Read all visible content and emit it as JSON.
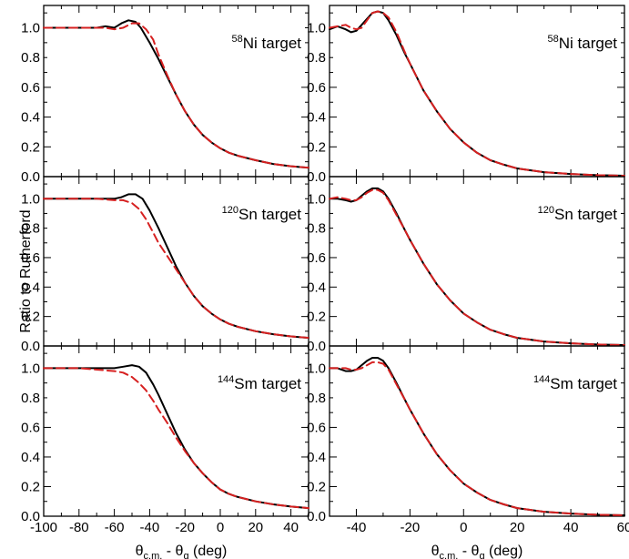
{
  "chart_data": {
    "type": "line",
    "ylabel": "Ratio to Rutherford",
    "xlabel_left": {
      "symbol": "θ",
      "sub1": "c.m.",
      "mid": " - θ",
      "sub2": "g",
      "unit": " (deg)"
    },
    "xlabel_right": {
      "symbol": "θ",
      "sub1": "c.m.",
      "mid": " - θ",
      "sub2": "g",
      "unit": " (deg)"
    },
    "line_styles": {
      "solid_color": "#000000",
      "dashed_color": "#d62020"
    },
    "columns": [
      {
        "xlim": [
          -100,
          50
        ],
        "xticks": [
          -100,
          -80,
          -60,
          -40,
          -20,
          0,
          20,
          40
        ],
        "xtick_labels": [
          "-100",
          "-80",
          "-60",
          "-40",
          "-20",
          "0",
          "20",
          "40"
        ]
      },
      {
        "xlim": [
          -50,
          60
        ],
        "xticks": [
          -40,
          -20,
          0,
          20,
          40,
          60
        ],
        "xtick_labels": [
          "-40",
          "-20",
          "0",
          "20",
          "40",
          "60"
        ]
      }
    ],
    "ylim": [
      0,
      1.15
    ],
    "yticks": [
      0,
      0.2,
      0.4,
      0.6,
      0.8,
      1.0
    ],
    "ytick_labels": [
      "0.0",
      "0.2",
      "0.4",
      "0.6",
      "0.8",
      "1.0"
    ],
    "panels": [
      {
        "col": 0,
        "row": 0,
        "label_sup": "58",
        "label": "Ni target",
        "series": [
          {
            "style": "solid",
            "x": [
              -100,
              -80,
              -70,
              -65,
              -60,
              -56,
              -52,
              -48,
              -45,
              -40,
              -35,
              -30,
              -25,
              -20,
              -15,
              -10,
              -5,
              0,
              5,
              10,
              20,
              30,
              40,
              50
            ],
            "y": [
              1.0,
              1.0,
              1.0,
              1.01,
              1.0,
              1.03,
              1.05,
              1.04,
              1.0,
              0.9,
              0.79,
              0.67,
              0.55,
              0.44,
              0.35,
              0.28,
              0.23,
              0.19,
              0.16,
              0.14,
              0.11,
              0.085,
              0.07,
              0.06
            ]
          },
          {
            "style": "dashed",
            "x": [
              -100,
              -80,
              -70,
              -65,
              -60,
              -55,
              -50,
              -46,
              -42,
              -38,
              -35,
              -30,
              -25,
              -20,
              -15,
              -10,
              -5,
              0,
              5,
              10,
              20,
              30,
              40,
              50
            ],
            "y": [
              1.0,
              1.0,
              1.0,
              1.0,
              0.99,
              1.0,
              1.03,
              1.03,
              0.99,
              0.92,
              0.82,
              0.68,
              0.55,
              0.44,
              0.35,
              0.28,
              0.23,
              0.19,
              0.16,
              0.14,
              0.11,
              0.085,
              0.07,
              0.06
            ]
          }
        ]
      },
      {
        "col": 1,
        "row": 0,
        "label_sup": "58",
        "label": "Ni target",
        "series": [
          {
            "style": "solid",
            "x": [
              -50,
              -47,
              -44,
              -42,
              -40,
              -38,
              -36,
              -34,
              -32,
              -30,
              -28,
              -25,
              -22,
              -20,
              -15,
              -10,
              -5,
              0,
              5,
              10,
              15,
              20,
              30,
              40,
              50,
              60
            ],
            "y": [
              0.99,
              1.01,
              0.99,
              0.97,
              0.98,
              1.02,
              1.06,
              1.1,
              1.11,
              1.1,
              1.05,
              0.95,
              0.83,
              0.76,
              0.58,
              0.44,
              0.32,
              0.23,
              0.16,
              0.11,
              0.08,
              0.055,
              0.03,
              0.018,
              0.01,
              0.006
            ]
          },
          {
            "style": "dashed",
            "x": [
              -50,
              -47,
              -44,
              -42,
              -40,
              -38,
              -36,
              -34,
              -32,
              -30,
              -28,
              -25,
              -22,
              -20,
              -15,
              -10,
              -5,
              0,
              5,
              10,
              15,
              20,
              30,
              40,
              50,
              60
            ],
            "y": [
              1.0,
              1.01,
              1.02,
              1.0,
              0.99,
              1.0,
              1.05,
              1.1,
              1.11,
              1.1,
              1.07,
              0.97,
              0.84,
              0.76,
              0.58,
              0.44,
              0.32,
              0.23,
              0.16,
              0.11,
              0.08,
              0.055,
              0.03,
              0.018,
              0.01,
              0.006
            ]
          }
        ]
      },
      {
        "col": 0,
        "row": 1,
        "label_sup": "120",
        "label": "Sn target",
        "series": [
          {
            "style": "solid",
            "x": [
              -100,
              -80,
              -70,
              -60,
              -56,
              -52,
              -48,
              -44,
              -40,
              -35,
              -30,
              -25,
              -20,
              -15,
              -10,
              -5,
              0,
              5,
              10,
              20,
              30,
              40,
              50
            ],
            "y": [
              1.0,
              1.0,
              1.0,
              1.0,
              1.01,
              1.03,
              1.03,
              1.0,
              0.92,
              0.8,
              0.67,
              0.54,
              0.43,
              0.34,
              0.27,
              0.22,
              0.18,
              0.15,
              0.13,
              0.1,
              0.08,
              0.065,
              0.055
            ]
          },
          {
            "style": "dashed",
            "x": [
              -100,
              -80,
              -70,
              -60,
              -55,
              -50,
              -46,
              -42,
              -38,
              -35,
              -30,
              -25,
              -20,
              -15,
              -10,
              -5,
              0,
              5,
              10,
              20,
              30,
              40,
              50
            ],
            "y": [
              1.0,
              1.0,
              1.0,
              0.99,
              0.99,
              0.97,
              0.93,
              0.86,
              0.77,
              0.7,
              0.61,
              0.52,
              0.43,
              0.34,
              0.27,
              0.22,
              0.18,
              0.15,
              0.13,
              0.1,
              0.08,
              0.065,
              0.055
            ]
          }
        ]
      },
      {
        "col": 1,
        "row": 1,
        "label_sup": "120",
        "label": "Sn target",
        "series": [
          {
            "style": "solid",
            "x": [
              -50,
              -47,
              -44,
              -42,
              -40,
              -38,
              -36,
              -34,
              -32,
              -30,
              -28,
              -25,
              -22,
              -20,
              -15,
              -10,
              -5,
              0,
              5,
              10,
              15,
              20,
              30,
              40,
              50,
              60
            ],
            "y": [
              1.0,
              1.0,
              0.99,
              0.98,
              0.99,
              1.02,
              1.05,
              1.07,
              1.07,
              1.05,
              1.0,
              0.9,
              0.79,
              0.72,
              0.56,
              0.42,
              0.31,
              0.22,
              0.16,
              0.11,
              0.08,
              0.055,
              0.03,
              0.018,
              0.01,
              0.006
            ]
          },
          {
            "style": "dashed",
            "x": [
              -50,
              -47,
              -44,
              -42,
              -40,
              -38,
              -36,
              -34,
              -32,
              -30,
              -28,
              -25,
              -22,
              -20,
              -15,
              -10,
              -5,
              0,
              5,
              10,
              15,
              20,
              30,
              40,
              50,
              60
            ],
            "y": [
              1.0,
              1.01,
              1.0,
              0.99,
              0.99,
              1.01,
              1.04,
              1.06,
              1.06,
              1.04,
              0.99,
              0.89,
              0.79,
              0.72,
              0.56,
              0.42,
              0.31,
              0.22,
              0.16,
              0.11,
              0.08,
              0.055,
              0.03,
              0.018,
              0.01,
              0.006
            ]
          }
        ]
      },
      {
        "col": 0,
        "row": 2,
        "label_sup": "144",
        "label": "Sm target",
        "series": [
          {
            "style": "solid",
            "x": [
              -100,
              -80,
              -70,
              -60,
              -55,
              -50,
              -46,
              -42,
              -38,
              -35,
              -30,
              -25,
              -20,
              -15,
              -10,
              -5,
              0,
              5,
              10,
              20,
              30,
              40,
              50
            ],
            "y": [
              1.0,
              1.0,
              1.0,
              1.0,
              1.01,
              1.02,
              1.01,
              0.97,
              0.89,
              0.82,
              0.69,
              0.56,
              0.45,
              0.36,
              0.29,
              0.23,
              0.18,
              0.15,
              0.13,
              0.1,
              0.08,
              0.065,
              0.055
            ]
          },
          {
            "style": "dashed",
            "x": [
              -100,
              -80,
              -70,
              -60,
              -55,
              -50,
              -46,
              -42,
              -38,
              -35,
              -30,
              -25,
              -20,
              -15,
              -10,
              -5,
              0,
              5,
              10,
              20,
              30,
              40,
              50
            ],
            "y": [
              1.0,
              1.0,
              0.99,
              0.98,
              0.97,
              0.94,
              0.9,
              0.85,
              0.78,
              0.72,
              0.63,
              0.53,
              0.44,
              0.36,
              0.29,
              0.23,
              0.18,
              0.15,
              0.13,
              0.1,
              0.08,
              0.065,
              0.055
            ]
          }
        ]
      },
      {
        "col": 1,
        "row": 2,
        "label_sup": "144",
        "label": "Sm target",
        "series": [
          {
            "style": "solid",
            "x": [
              -50,
              -47,
              -44,
              -42,
              -40,
              -38,
              -36,
              -34,
              -32,
              -30,
              -28,
              -25,
              -22,
              -20,
              -15,
              -10,
              -5,
              0,
              5,
              10,
              15,
              20,
              30,
              40,
              50,
              60
            ],
            "y": [
              1.0,
              1.0,
              0.98,
              0.98,
              0.99,
              1.02,
              1.05,
              1.07,
              1.07,
              1.05,
              1.0,
              0.9,
              0.79,
              0.72,
              0.56,
              0.42,
              0.31,
              0.22,
              0.16,
              0.11,
              0.08,
              0.055,
              0.03,
              0.018,
              0.01,
              0.006
            ]
          },
          {
            "style": "dashed",
            "x": [
              -50,
              -47,
              -44,
              -42,
              -40,
              -38,
              -36,
              -34,
              -32,
              -30,
              -28,
              -25,
              -22,
              -20,
              -15,
              -10,
              -5,
              0,
              5,
              10,
              15,
              20,
              30,
              40,
              50,
              60
            ],
            "y": [
              1.0,
              1.0,
              1.0,
              0.99,
              0.99,
              1.0,
              1.02,
              1.04,
              1.04,
              1.03,
              0.99,
              0.89,
              0.79,
              0.72,
              0.56,
              0.42,
              0.31,
              0.22,
              0.16,
              0.11,
              0.08,
              0.055,
              0.03,
              0.018,
              0.01,
              0.006
            ]
          }
        ]
      }
    ]
  }
}
